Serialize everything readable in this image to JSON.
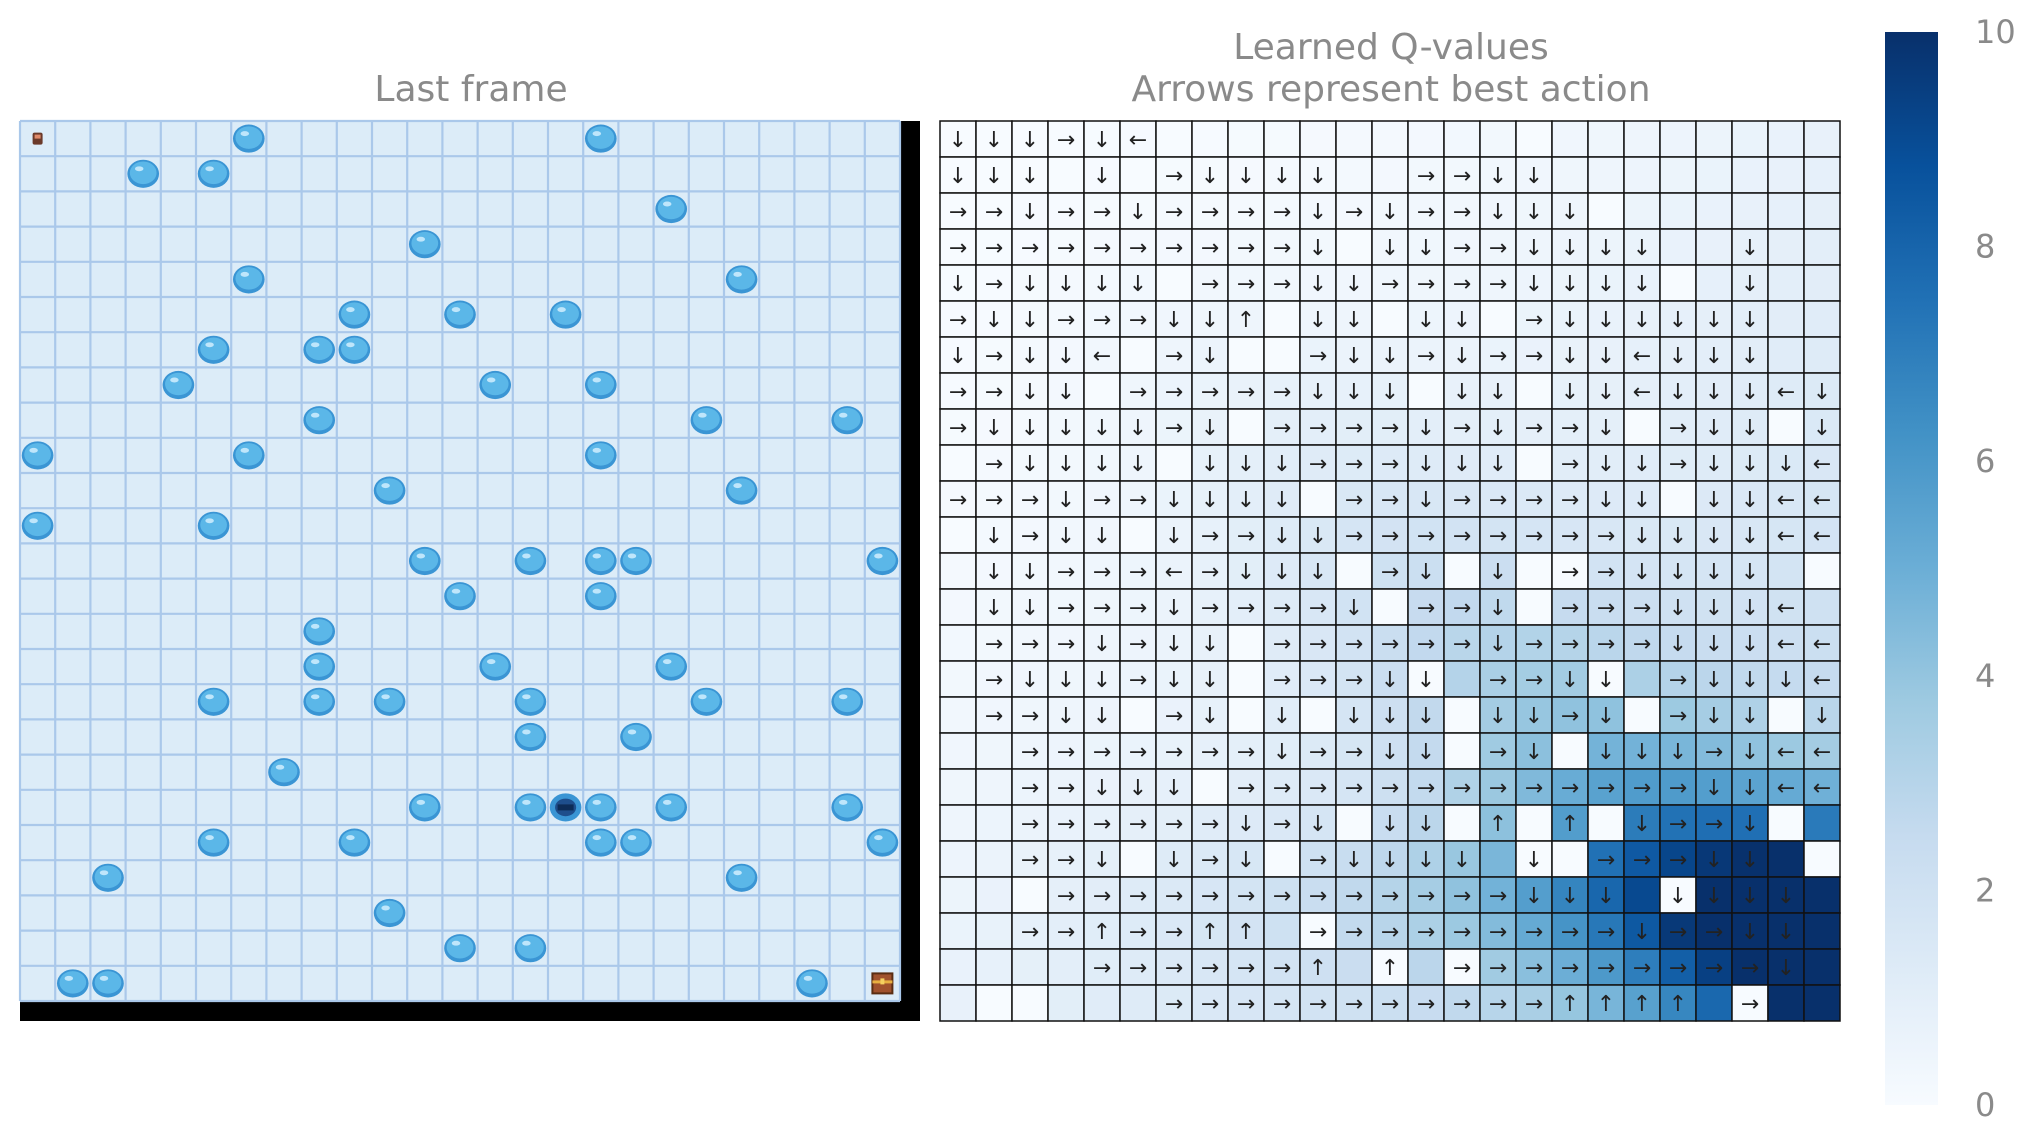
{
  "chart_data": [
    {
      "type": "image",
      "title": "Last frame",
      "grid_size": [
        25,
        25
      ],
      "colors": {
        "ice": "#dcecf8",
        "ice_edge": "#aac8ea",
        "hole": "#5bb7e8",
        "hole_dark": "#3a95d4",
        "border": "#000000",
        "goal": "#a0522d"
      },
      "icons": {
        "start": "start-marker-icon",
        "hole": "ice-hole-icon",
        "agent": "agent-icon",
        "goal": "goal-chest-icon"
      },
      "start": [
        0,
        0
      ],
      "agent": [
        19,
        15
      ],
      "goal": [
        24,
        24
      ],
      "holes": [
        [
          0,
          6
        ],
        [
          0,
          16
        ],
        [
          1,
          3
        ],
        [
          1,
          5
        ],
        [
          2,
          18
        ],
        [
          3,
          11
        ],
        [
          4,
          6
        ],
        [
          4,
          20
        ],
        [
          5,
          9
        ],
        [
          5,
          12
        ],
        [
          5,
          15
        ],
        [
          6,
          5
        ],
        [
          6,
          8
        ],
        [
          6,
          9
        ],
        [
          7,
          4
        ],
        [
          7,
          13
        ],
        [
          7,
          16
        ],
        [
          8,
          8
        ],
        [
          8,
          19
        ],
        [
          8,
          23
        ],
        [
          9,
          0
        ],
        [
          9,
          6
        ],
        [
          9,
          16
        ],
        [
          10,
          10
        ],
        [
          10,
          20
        ],
        [
          11,
          0
        ],
        [
          11,
          5
        ],
        [
          12,
          11
        ],
        [
          12,
          14
        ],
        [
          12,
          16
        ],
        [
          12,
          17
        ],
        [
          12,
          24
        ],
        [
          13,
          12
        ],
        [
          13,
          16
        ],
        [
          14,
          8
        ],
        [
          15,
          8
        ],
        [
          15,
          13
        ],
        [
          15,
          18
        ],
        [
          16,
          5
        ],
        [
          16,
          8
        ],
        [
          16,
          10
        ],
        [
          16,
          14
        ],
        [
          16,
          19
        ],
        [
          16,
          23
        ],
        [
          17,
          14
        ],
        [
          17,
          17
        ],
        [
          18,
          7
        ],
        [
          19,
          11
        ],
        [
          19,
          14
        ],
        [
          19,
          16
        ],
        [
          19,
          18
        ],
        [
          19,
          23
        ],
        [
          20,
          5
        ],
        [
          20,
          9
        ],
        [
          20,
          16
        ],
        [
          20,
          17
        ],
        [
          20,
          24
        ],
        [
          21,
          2
        ],
        [
          21,
          20
        ],
        [
          22,
          10
        ],
        [
          23,
          12
        ],
        [
          23,
          14
        ],
        [
          24,
          1
        ],
        [
          24,
          2
        ],
        [
          24,
          22
        ]
      ]
    },
    {
      "type": "heatmap",
      "title": "Learned Q-values",
      "subtitle": "Arrows represent best action",
      "grid_size": [
        25,
        25
      ],
      "vmin": 0,
      "vmax": 10,
      "colormap": "Blues",
      "colorbar_ticks": [
        "0",
        "2",
        "4",
        "6",
        "8",
        "10"
      ],
      "arrows": [
        "↓↓↓→↓←                   ",
        "↓↓↓ ↓ →↓↓↓↓  →→↓↓        ",
        "→→↓→→↓→→→→↓→↓→→↓↓↓       ",
        "→→→→→→→→→→↓ ↓↓→→↓↓↓↓  ↓  ",
        "↓→↓↓↓↓ →→→↓↓→→→→↓↓↓↓  ↓  ",
        "→↓↓→→→↓↓↑ ↓↓ ↓↓ →↓↓↓↓↓↓  ",
        "↓→↓↓← →↓  →↓↓→↓→→↓↓←↓↓↓  ",
        "→→↓↓ →→→→→↓↓↓ ↓↓ ↓↓←↓↓↓←↓",
        "→↓↓↓↓↓→↓ →→→→↓→↓→→↓ →↓↓ ↓",
        " →↓↓↓↓ ↓↓↓→→→↓↓↓ →↓↓→↓↓↓←",
        "→→→↓→→↓↓↓↓ →→↓→→→→↓↓ ↓↓←←",
        " ↓→↓↓ ↓→→↓↓→→→→→→→→↓↓↓↓←←",
        " ↓↓→→→←→↓↓↓ →↓ ↓ →→↓↓↓↓  ",
        " ↓↓→→→↓→→→→↓ →→↓ →→→↓↓↓← ",
        " →→→↓→↓↓ →→→→→→↓→→→→↓↓↓←←",
        " →↓↓↓→↓↓ →→→↓↓ →→↓↓ →↓↓↓←↓",
        " →→↓↓ →↓ ↓ ↓↓↓ ↓↓→↓ →↓↓ ↓",
        "  →→→→→→→↓→→↓↓ →↓ ↓↓↓→↓←←",
        "  →→↓↓↓ →→→→→→→→→→→→→↓↓←←",
        "  →→→→→→↓→↓ ↓↓ ↑ ↑ ↓→→↓  ",
        "  →→↓ ↓→↓ →↓↓↓↓ ↓ →→→↓↓  ",
        "   →→→→→→→→→→→→→↓↓↓ ↓↓↓↓",
        "  →→↑→→↑↑ →→→→→→→→→↓→→↓↓",
        "    →→→→→→↑ ↑ →→→→→→→→→↓",
        "      →→→→→→→→→→→↑↑↑↑ →  "
      ]
    }
  ]
}
